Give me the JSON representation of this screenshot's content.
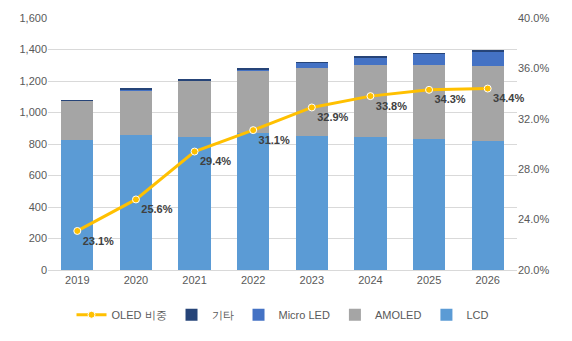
{
  "chart_data": {
    "type": "bar",
    "stacked": true,
    "categories": [
      "2019",
      "2020",
      "2021",
      "2022",
      "2023",
      "2024",
      "2025",
      "2026"
    ],
    "series": [
      {
        "name": "LCD",
        "color": "#5b9bd5",
        "values": [
          825,
          855,
          845,
          870,
          850,
          845,
          832,
          820
        ]
      },
      {
        "name": "AMOLED",
        "color": "#a5a5a5",
        "values": [
          248,
          285,
          355,
          395,
          435,
          455,
          468,
          475
        ]
      },
      {
        "name": "Micro LED",
        "color": "#4472c4",
        "values": [
          2,
          5,
          5,
          10,
          30,
          50,
          72,
          95
        ]
      },
      {
        "name": "기타",
        "color": "#264478",
        "values": [
          3,
          5,
          2,
          2,
          3,
          3,
          3,
          3
        ]
      },
      {
        "name": "OLED 비중",
        "type": "line",
        "axis": "y2",
        "color": "#ffc000",
        "marker": "circle",
        "line_style": "solid",
        "data_labels": true,
        "values": [
          23.1,
          25.6,
          29.4,
          31.1,
          32.9,
          33.8,
          34.3,
          34.4
        ],
        "value_labels": [
          "23.1%",
          "25.6%",
          "29.4%",
          "31.1%",
          "32.9%",
          "33.8%",
          "34.3%",
          "34.4%"
        ]
      }
    ],
    "ylim": [
      0,
      1600
    ],
    "yticks": [
      0,
      200,
      400,
      600,
      800,
      {
        "value": 1000,
        "label": "1,000"
      },
      {
        "value": 1200,
        "label": "1,200"
      },
      {
        "value": 1400,
        "label": "1,400"
      },
      {
        "value": 1600,
        "label": "1,600"
      }
    ],
    "y2lim": [
      20,
      40
    ],
    "y2ticks": [
      {
        "value": 20,
        "label": "20.0%"
      },
      {
        "value": 24,
        "label": "24.0%"
      },
      {
        "value": 28,
        "label": "28.0%"
      },
      {
        "value": 32,
        "label": "32.0%"
      },
      {
        "value": 36,
        "label": "36.0%"
      },
      {
        "value": 40,
        "label": "40.0%"
      }
    ],
    "grid": true,
    "legend": "bottom"
  }
}
